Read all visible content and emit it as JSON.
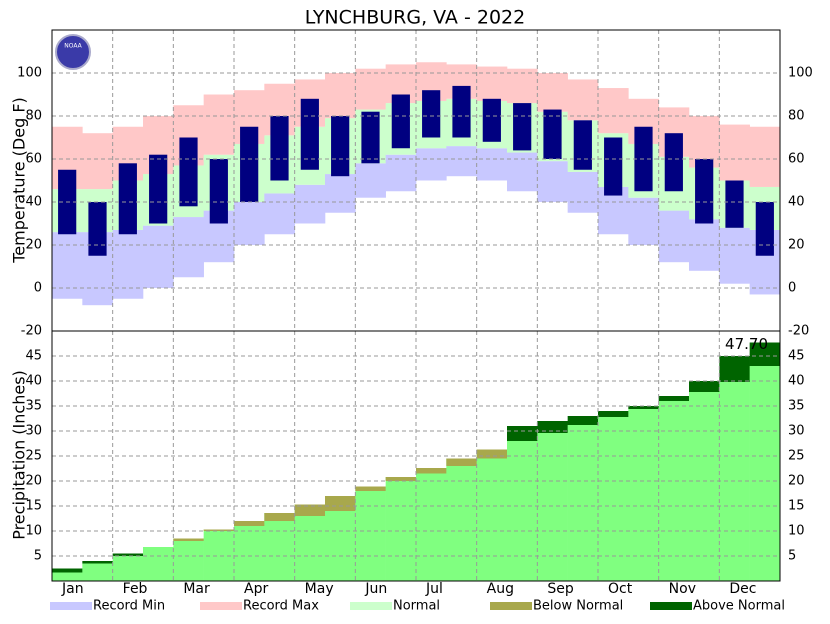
{
  "chart_data": [
    {
      "type": "temperature-range",
      "title": "LYNCHBURG, VA - 2022",
      "y_label": "Temperature (Deg F)",
      "logo": "NOAA",
      "categories": [
        "Jan",
        null,
        "Feb",
        null,
        "Mar",
        null,
        "Apr",
        null,
        "May",
        null,
        "Jun",
        null,
        "Jul",
        null,
        "Aug",
        null,
        "Sep",
        null,
        "Oct",
        null,
        "Nov",
        null,
        "Dec",
        null
      ],
      "ylim": [
        -20,
        120
      ],
      "yticks": [
        -20,
        0,
        20,
        40,
        60,
        80,
        100
      ],
      "grid": true,
      "series": [
        {
          "values": [
            -5,
            -8,
            -5,
            0,
            5,
            12,
            20,
            25,
            30,
            35,
            42,
            45,
            50,
            52,
            50,
            45,
            40,
            35,
            25,
            20,
            12,
            8,
            2,
            -3
          ]
        },
        {
          "values": [
            75,
            72,
            75,
            80,
            85,
            90,
            92,
            95,
            97,
            100,
            102,
            104,
            105,
            104,
            103,
            102,
            100,
            97,
            93,
            88,
            84,
            80,
            76,
            75
          ]
        },
        {
          "low": [
            26,
            26,
            27,
            29,
            33,
            36,
            40,
            44,
            48,
            53,
            58,
            62,
            65,
            66,
            65,
            63,
            59,
            54,
            47,
            42,
            36,
            32,
            28,
            27
          ],
          "high": [
            46,
            46,
            50,
            53,
            57,
            62,
            67,
            71,
            75,
            79,
            83,
            86,
            87,
            88,
            87,
            86,
            82,
            78,
            72,
            67,
            61,
            56,
            50,
            47
          ]
        },
        {
          "color": "#000080",
          "low": [
            25,
            15,
            25,
            30,
            38,
            30,
            40,
            50,
            55,
            52,
            58,
            65,
            70,
            70,
            68,
            64,
            60,
            55,
            43,
            45,
            45,
            30,
            28,
            15
          ],
          "high": [
            55,
            40,
            58,
            62,
            70,
            60,
            75,
            80,
            88,
            80,
            82,
            90,
            92,
            94,
            88,
            86,
            83,
            78,
            70,
            75,
            72,
            60,
            50,
            40
          ]
        }
      ],
      "legend": [
        {
          "name": "Record Min",
          "color": "#c8c8ff"
        },
        {
          "name": "Record Max",
          "color": "#ffc8c8"
        },
        {
          "name": "Normal",
          "color": "#ccffcc"
        },
        {
          "name": "Below Normal",
          "color": "#a8a84c"
        },
        {
          "name": "Above Normal",
          "color": "#006400"
        }
      ]
    },
    {
      "type": "cumulative-precip",
      "y_label": "Precipitation (Inches)",
      "ylim": [
        0,
        50
      ],
      "yticks": [
        5,
        10,
        15,
        20,
        25,
        30,
        35,
        40,
        45
      ],
      "grid": true,
      "above_color": "#006400",
      "below_color": "#a8a84c",
      "series": [
        {
          "values": [
            2.5,
            4,
            5.5,
            6.8,
            8,
            10,
            11,
            12,
            13,
            14,
            18,
            20,
            21.5,
            23,
            24.5,
            31,
            32,
            33,
            34,
            35,
            37,
            40,
            45,
            47.7
          ],
          "value_labels": [
            null,
            null,
            null,
            null,
            null,
            null,
            null,
            null,
            null,
            null,
            null,
            null,
            null,
            null,
            null,
            null,
            null,
            null,
            null,
            null,
            null,
            null,
            null,
            "47.70"
          ]
        },
        {
          "color": "#80ff80",
          "values": [
            1.7,
            3.5,
            5,
            6.8,
            8.5,
            10.3,
            12,
            13.6,
            15.3,
            17,
            18.9,
            20.8,
            22.6,
            24.5,
            26.3,
            28,
            29.6,
            31.2,
            32.8,
            34.4,
            36,
            37.8,
            39.8,
            43
          ]
        }
      ]
    }
  ]
}
